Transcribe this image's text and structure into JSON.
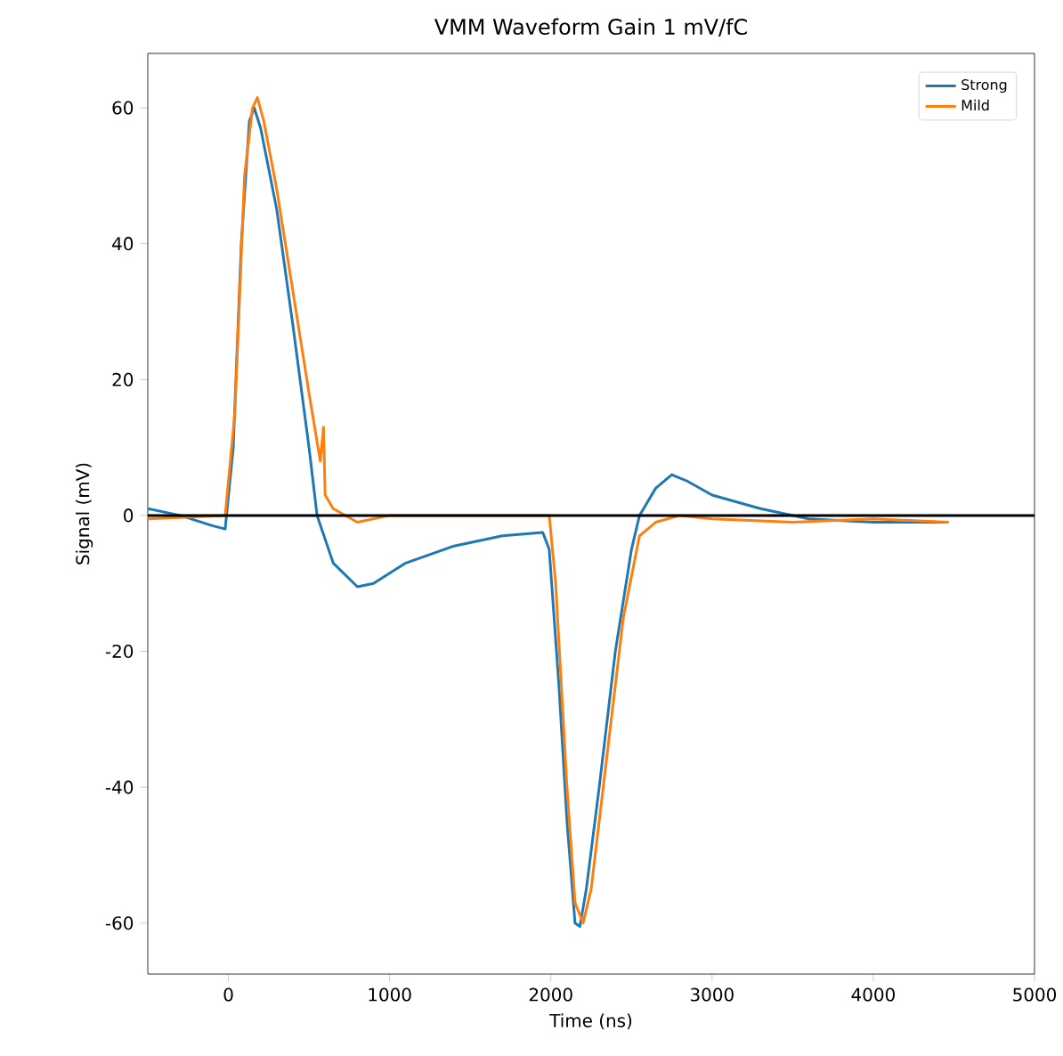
{
  "chart_data": {
    "type": "line",
    "title": "VMM Waveform Gain 1 mV/fC",
    "xlabel": "Time (ns)",
    "ylabel": "Signal (mV)",
    "xlim": [
      -500,
      5000
    ],
    "ylim": [
      -67.5,
      68
    ],
    "xticks": [
      0,
      1000,
      2000,
      3000,
      4000,
      5000
    ],
    "yticks": [
      -60,
      -40,
      -20,
      0,
      20,
      40,
      60
    ],
    "grid": false,
    "legend": "top right",
    "ref_lines": [
      {
        "axis": "y",
        "value": 0,
        "color": "#000000"
      }
    ],
    "series": [
      {
        "name": "Strong",
        "color": "#1f77b4",
        "x": [
          -500,
          -300,
          -100,
          -20,
          30,
          80,
          130,
          160,
          200,
          300,
          400,
          500,
          550,
          650,
          800,
          900,
          1100,
          1400,
          1700,
          1950,
          1990,
          2050,
          2100,
          2150,
          2180,
          2220,
          2300,
          2400,
          2500,
          2550,
          2650,
          2750,
          2850,
          3000,
          3300,
          3600,
          4000,
          4450
        ],
        "values": [
          1,
          0,
          -1.5,
          -2,
          10,
          40,
          58,
          60,
          57,
          45,
          28,
          10,
          0,
          -7,
          -10.5,
          -10,
          -7,
          -4.5,
          -3,
          -2.5,
          -5,
          -25,
          -45,
          -60,
          -60.5,
          -55,
          -40,
          -20,
          -5,
          0,
          4,
          6,
          5,
          3,
          1,
          -0.5,
          -1,
          -1
        ]
      },
      {
        "name": "Mild",
        "color": "#ff7f0e",
        "x": [
          -500,
          -20,
          40,
          100,
          150,
          180,
          220,
          300,
          400,
          500,
          570,
          590,
          600,
          650,
          800,
          1000,
          1500,
          1990,
          2030,
          2100,
          2150,
          2200,
          2250,
          2350,
          2450,
          2550,
          2650,
          2800,
          3000,
          3500,
          4000,
          4470
        ],
        "values": [
          -0.5,
          0,
          15,
          50,
          60,
          61.5,
          58,
          48,
          33,
          18,
          8,
          13,
          3,
          1,
          -1,
          0,
          0,
          0,
          -10,
          -40,
          -57,
          -60,
          -55,
          -35,
          -15,
          -3,
          -1,
          0,
          -0.5,
          -1,
          -0.5,
          -1
        ]
      }
    ]
  }
}
